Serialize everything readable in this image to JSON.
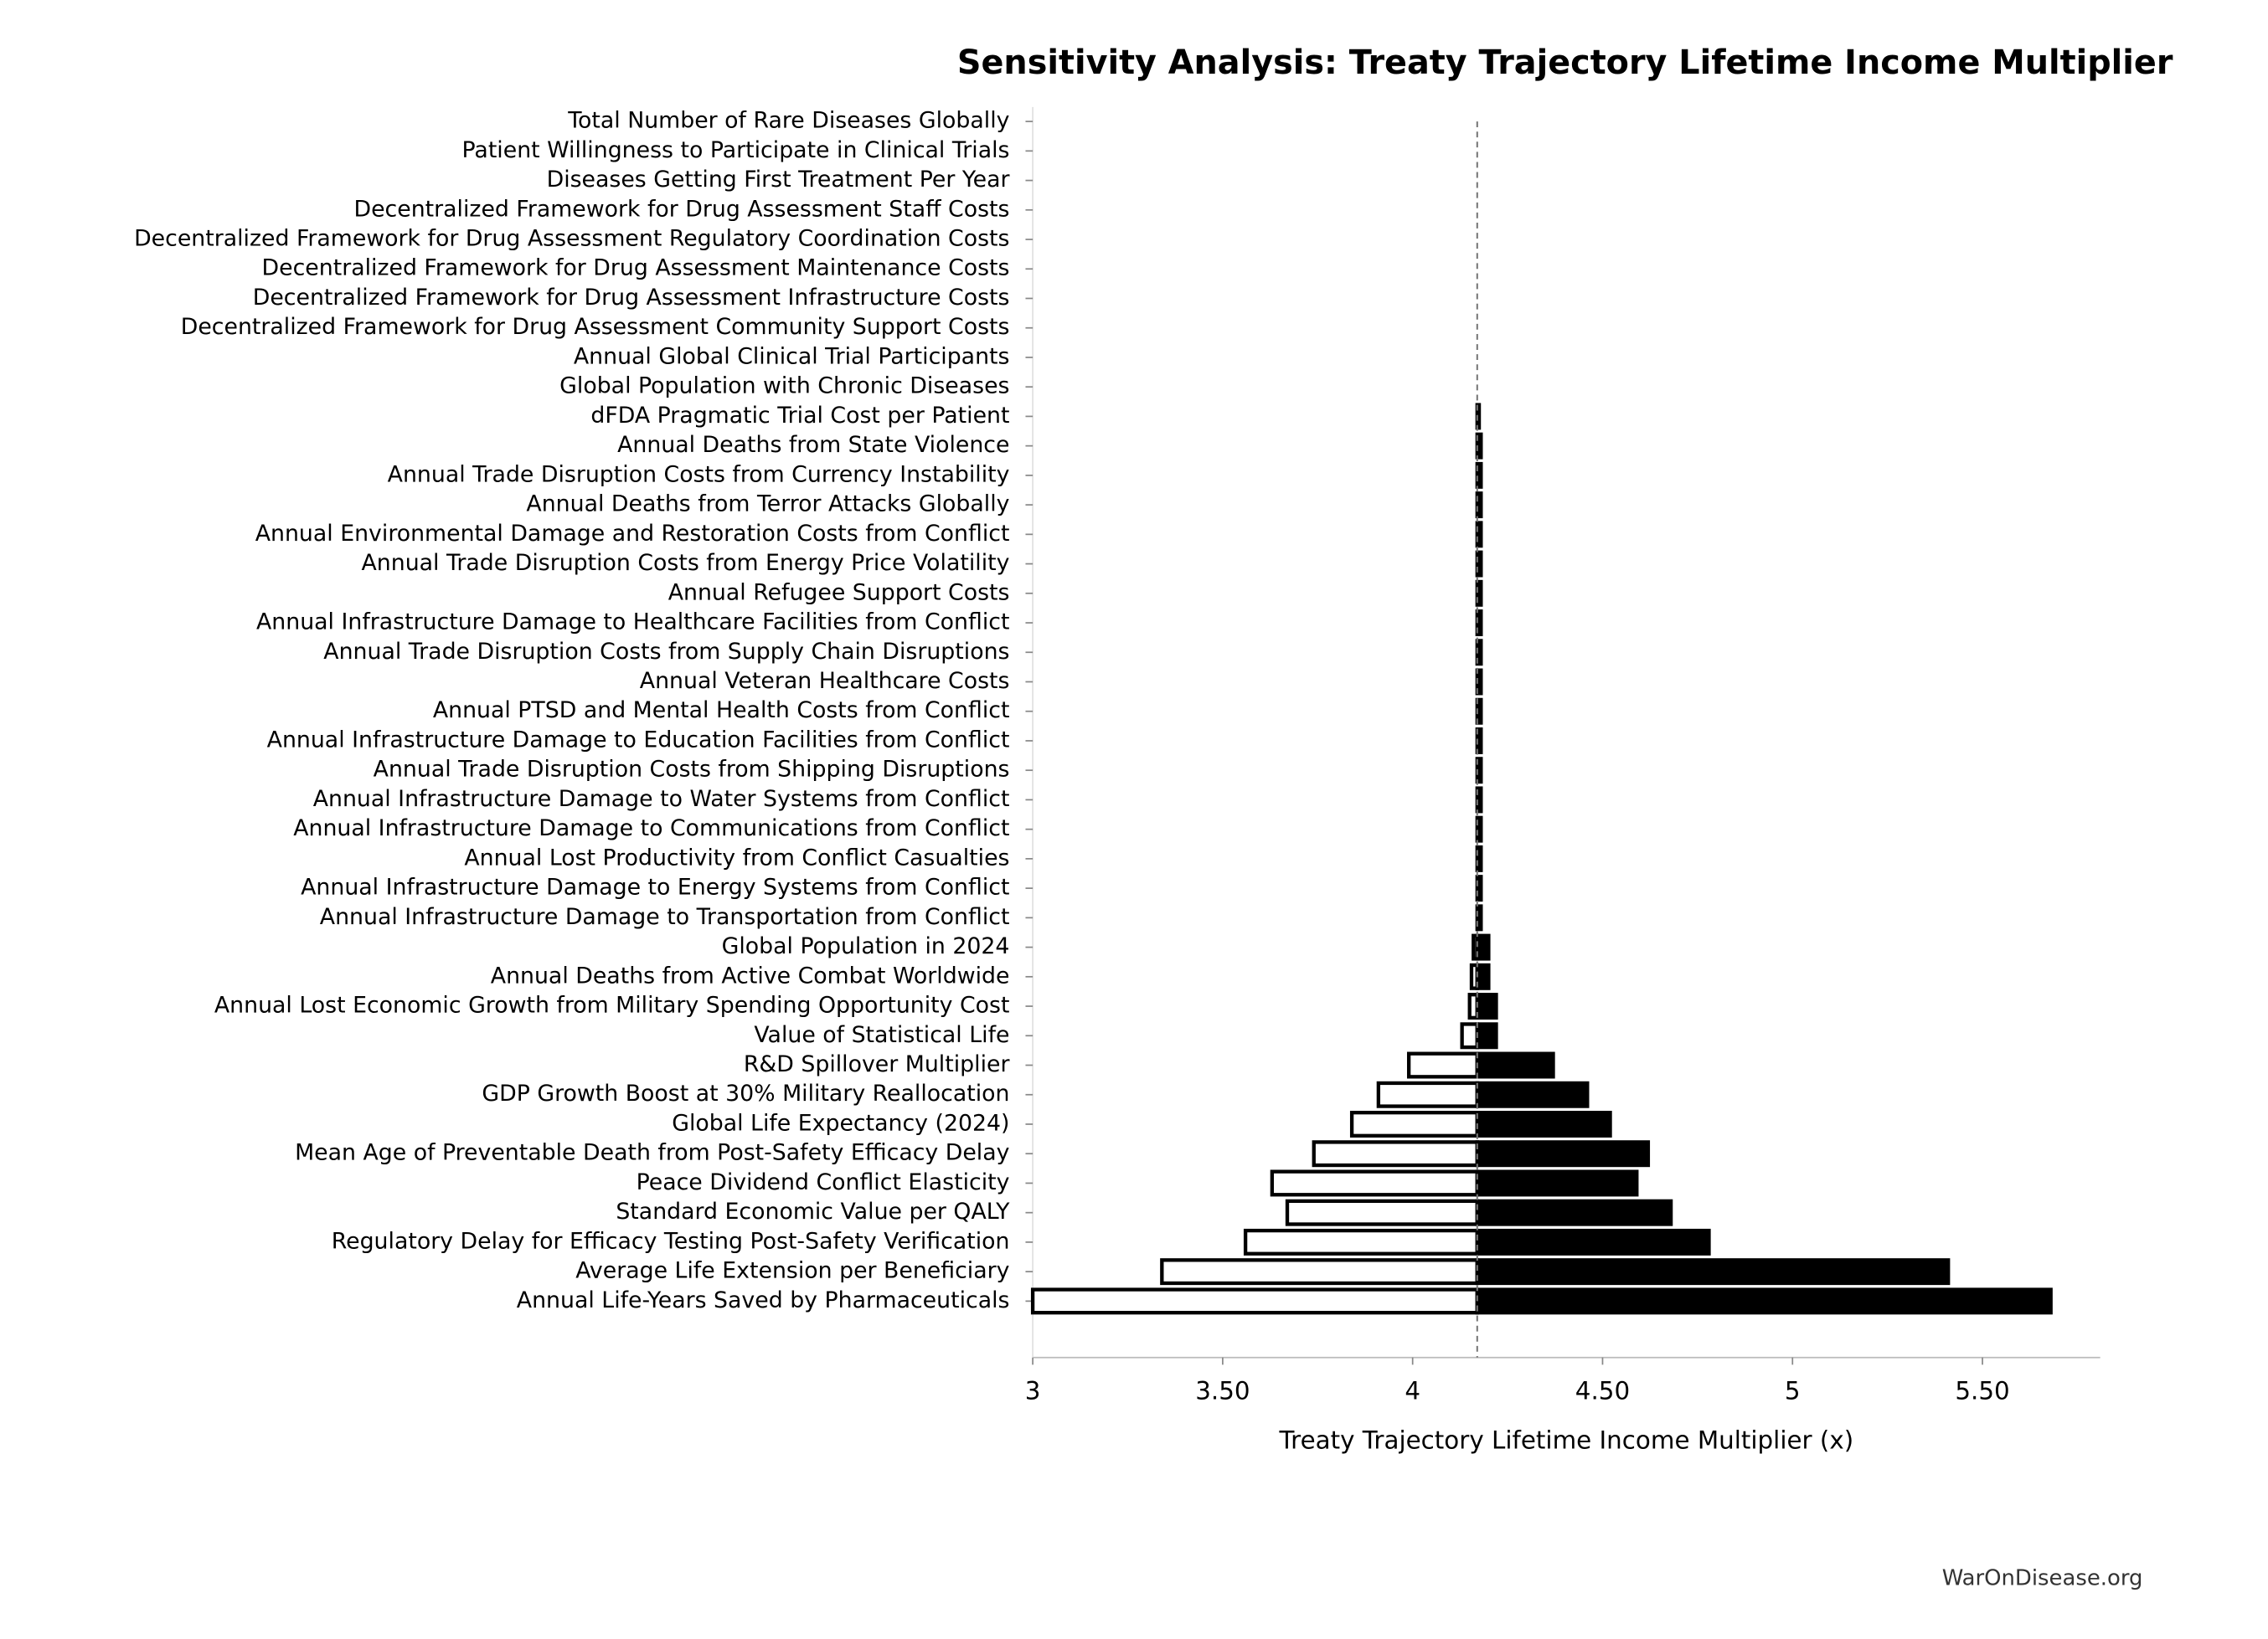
{
  "chart_data": {
    "type": "tornado",
    "title": "Sensitivity Analysis: Treaty Trajectory Lifetime Income Multiplier",
    "x_label": "Treaty Trajectory Lifetime Income Multiplier (x)",
    "source": "WarOnDisease.org",
    "baseline": 4.17,
    "categories": [
      "Total Number of Rare Diseases Globally",
      "Patient Willingness to Participate in Clinical Trials",
      "Diseases Getting First Treatment Per Year",
      "Decentralized Framework for Drug Assessment Staff Costs",
      "Decentralized Framework for Drug Assessment Regulatory Coordination Costs",
      "Decentralized Framework for Drug Assessment Maintenance Costs",
      "Decentralized Framework for Drug Assessment Infrastructure Costs",
      "Decentralized Framework for Drug Assessment Community Support Costs",
      "Annual Global Clinical Trial Participants",
      "Global Population with Chronic Diseases",
      "dFDA Pragmatic Trial Cost per Patient",
      "Annual Deaths from State Violence",
      "Annual Trade Disruption Costs from Currency Instability",
      "Annual Deaths from Terror Attacks Globally",
      "Annual Environmental Damage and Restoration Costs from Conflict",
      "Annual Trade Disruption Costs from Energy Price Volatility",
      "Annual Refugee Support Costs",
      "Annual Infrastructure Damage to Healthcare Facilities from Conflict",
      "Annual Trade Disruption Costs from Supply Chain Disruptions",
      "Annual Veteran Healthcare Costs",
      "Annual PTSD and Mental Health Costs from Conflict",
      "Annual Infrastructure Damage to Education Facilities from Conflict",
      "Annual Trade Disruption Costs from Shipping Disruptions",
      "Annual Infrastructure Damage to Water Systems from Conflict",
      "Annual Infrastructure Damage to Communications from Conflict",
      "Annual Lost Productivity from Conflict Casualties",
      "Annual Infrastructure Damage to Energy Systems from Conflict",
      "Annual Infrastructure Damage to Transportation from Conflict",
      "Global Population in 2024",
      "Annual Deaths from Active Combat Worldwide",
      "Annual Lost Economic Growth from Military Spending Opportunity Cost",
      "Value of Statistical Life",
      "R&D Spillover Multiplier",
      "GDP Growth Boost at 30% Military Reallocation",
      "Global Life Expectancy (2024)",
      "Mean Age of Preventable Death from Post-Safety Efficacy Delay",
      "Peace Dividend Conflict Elasticity",
      "Standard Economic Value per QALY",
      "Regulatory Delay for Efficacy Testing Post-Safety Verification",
      "Average Life Extension per Beneficiary",
      "Annual Life-Years Saved by Pharmaceuticals"
    ],
    "series": [
      {
        "color": "#ffffff",
        "values": [
          4.17,
          4.17,
          4.17,
          4.17,
          4.17,
          4.17,
          4.17,
          4.17,
          4.17,
          4.17,
          4.17,
          4.17,
          4.17,
          4.17,
          4.17,
          4.17,
          4.17,
          4.17,
          4.17,
          4.17,
          4.17,
          4.17,
          4.17,
          4.17,
          4.17,
          4.17,
          4.17,
          4.17,
          4.16,
          4.155,
          4.15,
          4.13,
          3.99,
          3.91,
          3.84,
          3.74,
          3.63,
          3.67,
          3.56,
          3.34,
          3.0
        ]
      },
      {
        "color": "#000000",
        "values": [
          4.17,
          4.17,
          4.17,
          4.17,
          4.17,
          4.17,
          4.17,
          4.17,
          4.17,
          4.17,
          4.175,
          4.18,
          4.18,
          4.18,
          4.18,
          4.18,
          4.18,
          4.18,
          4.18,
          4.18,
          4.18,
          4.18,
          4.18,
          4.18,
          4.18,
          4.18,
          4.18,
          4.18,
          4.2,
          4.2,
          4.22,
          4.22,
          4.37,
          4.46,
          4.52,
          4.62,
          4.59,
          4.68,
          4.78,
          5.41,
          5.68
        ]
      }
    ],
    "xlim": [
      3,
      5.81
    ],
    "xticks": [
      3,
      {
        "value": 3.5,
        "label": "3.50"
      },
      4,
      {
        "value": 4.5,
        "label": "4.50"
      },
      5,
      {
        "value": 5.5,
        "label": "5.50"
      }
    ]
  }
}
